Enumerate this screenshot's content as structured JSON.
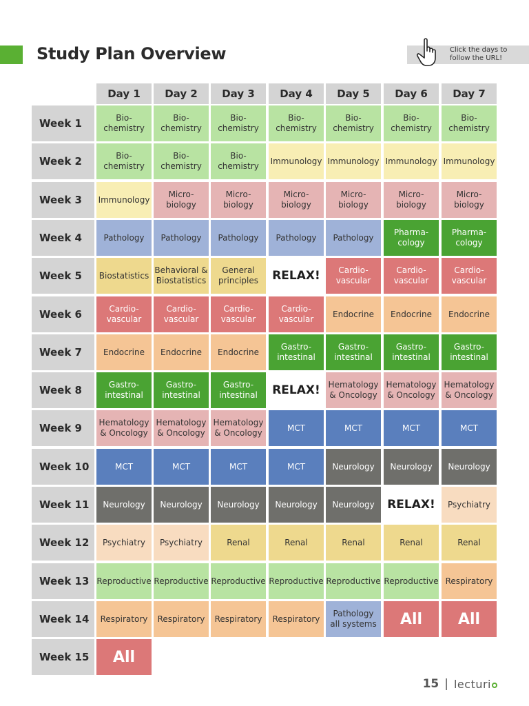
{
  "header": {
    "title": "Study Plan Overview",
    "hint": "Click the days to\nfollow the URL!"
  },
  "days": [
    "Day 1",
    "Day 2",
    "Day 3",
    "Day 4",
    "Day 5",
    "Day 6",
    "Day 7"
  ],
  "colors": {
    "bio": {
      "bg": "#b8e3a2",
      "fg": "#333333"
    },
    "imm": {
      "bg": "#f8eeb4",
      "fg": "#333333"
    },
    "micro": {
      "bg": "#e5b4b4",
      "fg": "#333333"
    },
    "path": {
      "bg": "#9fb2d8",
      "fg": "#333333"
    },
    "pharma": {
      "bg": "#4aa333",
      "fg": "#ffffff"
    },
    "biostat": {
      "bg": "#eed98e",
      "fg": "#333333"
    },
    "cardio": {
      "bg": "#dc7878",
      "fg": "#ffffff"
    },
    "endo": {
      "bg": "#f5c595",
      "fg": "#333333"
    },
    "gastro": {
      "bg": "#4aa333",
      "fg": "#ffffff"
    },
    "heme": {
      "bg": "#e5b4b4",
      "fg": "#333333"
    },
    "mct": {
      "bg": "#5a7fbd",
      "fg": "#ffffff"
    },
    "neuro": {
      "bg": "#6f6f6b",
      "fg": "#ffffff"
    },
    "psych": {
      "bg": "#f8dcc0",
      "fg": "#333333"
    },
    "renal": {
      "bg": "#eed98e",
      "fg": "#333333"
    },
    "repro": {
      "bg": "#b8e3a2",
      "fg": "#333333"
    },
    "resp": {
      "bg": "#f5c595",
      "fg": "#333333"
    },
    "all": {
      "bg": "#dc7878",
      "fg": "#ffffff"
    },
    "relax": {
      "bg": "#ffffff",
      "fg": "#1e1e1e"
    }
  },
  "weeks": [
    {
      "label": "Week 1",
      "cells": [
        {
          "text": "Bio-\nchemistry",
          "cat": "bio"
        },
        {
          "text": "Bio-\nchemistry",
          "cat": "bio"
        },
        {
          "text": "Bio-\nchemistry",
          "cat": "bio"
        },
        {
          "text": "Bio-\nchemistry",
          "cat": "bio"
        },
        {
          "text": "Bio-\nchemistry",
          "cat": "bio"
        },
        {
          "text": "Bio-\nchemistry",
          "cat": "bio"
        },
        {
          "text": "Bio-\nchemistry",
          "cat": "bio"
        }
      ]
    },
    {
      "label": "Week 2",
      "cells": [
        {
          "text": "Bio-\nchemistry",
          "cat": "bio"
        },
        {
          "text": "Bio-\nchemistry",
          "cat": "bio"
        },
        {
          "text": "Bio-\nchemistry",
          "cat": "bio"
        },
        {
          "text": "Immunology",
          "cat": "imm"
        },
        {
          "text": "Immunology",
          "cat": "imm"
        },
        {
          "text": "Immunology",
          "cat": "imm"
        },
        {
          "text": "Immunology",
          "cat": "imm"
        }
      ]
    },
    {
      "label": "Week 3",
      "cells": [
        {
          "text": "Immunology",
          "cat": "imm"
        },
        {
          "text": "Micro-\nbiology",
          "cat": "micro"
        },
        {
          "text": "Micro-\nbiology",
          "cat": "micro"
        },
        {
          "text": "Micro-\nbiology",
          "cat": "micro"
        },
        {
          "text": "Micro-\nbiology",
          "cat": "micro"
        },
        {
          "text": "Micro-\nbiology",
          "cat": "micro"
        },
        {
          "text": "Micro-\nbiology",
          "cat": "micro"
        }
      ]
    },
    {
      "label": "Week 4",
      "cells": [
        {
          "text": "Pathology",
          "cat": "path"
        },
        {
          "text": "Pathology",
          "cat": "path"
        },
        {
          "text": "Pathology",
          "cat": "path"
        },
        {
          "text": "Pathology",
          "cat": "path"
        },
        {
          "text": "Pathology",
          "cat": "path"
        },
        {
          "text": "Pharma-\ncology",
          "cat": "pharma"
        },
        {
          "text": "Pharma-\ncology",
          "cat": "pharma"
        }
      ]
    },
    {
      "label": "Week 5",
      "cells": [
        {
          "text": "Biostatistics",
          "cat": "biostat"
        },
        {
          "text": "Behavioral &\nBiostatistics",
          "cat": "biostat"
        },
        {
          "text": "General\nprinciples",
          "cat": "biostat"
        },
        {
          "text": "RELAX!",
          "cat": "relax"
        },
        {
          "text": "Cardio-\nvascular",
          "cat": "cardio"
        },
        {
          "text": "Cardio-\nvascular",
          "cat": "cardio"
        },
        {
          "text": "Cardio-\nvascular",
          "cat": "cardio"
        }
      ]
    },
    {
      "label": "Week 6",
      "cells": [
        {
          "text": "Cardio-\nvascular",
          "cat": "cardio"
        },
        {
          "text": "Cardio-\nvascular",
          "cat": "cardio"
        },
        {
          "text": "Cardio-\nvascular",
          "cat": "cardio"
        },
        {
          "text": "Cardio-\nvascular",
          "cat": "cardio"
        },
        {
          "text": "Endocrine",
          "cat": "endo"
        },
        {
          "text": "Endocrine",
          "cat": "endo"
        },
        {
          "text": "Endocrine",
          "cat": "endo"
        }
      ]
    },
    {
      "label": "Week 7",
      "cells": [
        {
          "text": "Endocrine",
          "cat": "endo"
        },
        {
          "text": "Endocrine",
          "cat": "endo"
        },
        {
          "text": "Endocrine",
          "cat": "endo"
        },
        {
          "text": "Gastro-\nintestinal",
          "cat": "gastro"
        },
        {
          "text": "Gastro-\nintestinal",
          "cat": "gastro"
        },
        {
          "text": "Gastro-\nintestinal",
          "cat": "gastro"
        },
        {
          "text": "Gastro-\nintestinal",
          "cat": "gastro"
        }
      ]
    },
    {
      "label": "Week 8",
      "cells": [
        {
          "text": "Gastro-\nintestinal",
          "cat": "gastro"
        },
        {
          "text": "Gastro-\nintestinal",
          "cat": "gastro"
        },
        {
          "text": "Gastro-\nintestinal",
          "cat": "gastro"
        },
        {
          "text": "RELAX!",
          "cat": "relax"
        },
        {
          "text": "Hematology\n& Oncology",
          "cat": "heme"
        },
        {
          "text": "Hematology\n& Oncology",
          "cat": "heme"
        },
        {
          "text": "Hematology\n& Oncology",
          "cat": "heme"
        }
      ]
    },
    {
      "label": "Week 9",
      "cells": [
        {
          "text": "Hematology\n& Oncology",
          "cat": "heme"
        },
        {
          "text": "Hematology\n& Oncology",
          "cat": "heme"
        },
        {
          "text": "Hematology\n& Oncology",
          "cat": "heme"
        },
        {
          "text": "MCT",
          "cat": "mct"
        },
        {
          "text": "MCT",
          "cat": "mct"
        },
        {
          "text": "MCT",
          "cat": "mct"
        },
        {
          "text": "MCT",
          "cat": "mct"
        }
      ]
    },
    {
      "label": "Week 10",
      "cells": [
        {
          "text": "MCT",
          "cat": "mct"
        },
        {
          "text": "MCT",
          "cat": "mct"
        },
        {
          "text": "MCT",
          "cat": "mct"
        },
        {
          "text": "MCT",
          "cat": "mct"
        },
        {
          "text": "Neurology",
          "cat": "neuro"
        },
        {
          "text": "Neurology",
          "cat": "neuro"
        },
        {
          "text": "Neurology",
          "cat": "neuro"
        }
      ]
    },
    {
      "label": "Week 11",
      "cells": [
        {
          "text": "Neurology",
          "cat": "neuro"
        },
        {
          "text": "Neurology",
          "cat": "neuro"
        },
        {
          "text": "Neurology",
          "cat": "neuro"
        },
        {
          "text": "Neurology",
          "cat": "neuro"
        },
        {
          "text": "Neurology",
          "cat": "neuro"
        },
        {
          "text": "RELAX!",
          "cat": "relax"
        },
        {
          "text": "Psychiatry",
          "cat": "psych"
        }
      ]
    },
    {
      "label": "Week 12",
      "cells": [
        {
          "text": "Psychiatry",
          "cat": "psych"
        },
        {
          "text": "Psychiatry",
          "cat": "psych"
        },
        {
          "text": "Renal",
          "cat": "renal"
        },
        {
          "text": "Renal",
          "cat": "renal"
        },
        {
          "text": "Renal",
          "cat": "renal"
        },
        {
          "text": "Renal",
          "cat": "renal"
        },
        {
          "text": "Renal",
          "cat": "renal"
        }
      ]
    },
    {
      "label": "Week 13",
      "cells": [
        {
          "text": "Reproductive",
          "cat": "repro"
        },
        {
          "text": "Reproductive",
          "cat": "repro"
        },
        {
          "text": "Reproductive",
          "cat": "repro"
        },
        {
          "text": "Reproductive",
          "cat": "repro"
        },
        {
          "text": "Reproductive",
          "cat": "repro"
        },
        {
          "text": "Reproductive",
          "cat": "repro"
        },
        {
          "text": "Respiratory",
          "cat": "resp"
        }
      ]
    },
    {
      "label": "Week 14",
      "cells": [
        {
          "text": "Respiratory",
          "cat": "resp"
        },
        {
          "text": "Respiratory",
          "cat": "resp"
        },
        {
          "text": "Respiratory",
          "cat": "resp"
        },
        {
          "text": "Respiratory",
          "cat": "resp"
        },
        {
          "text": "Pathology\nall systems",
          "cat": "path"
        },
        {
          "text": "All",
          "cat": "all"
        },
        {
          "text": "All",
          "cat": "all"
        }
      ]
    },
    {
      "label": "Week 15",
      "cells": [
        {
          "text": "All",
          "cat": "all"
        }
      ]
    }
  ],
  "footer": {
    "page_number": "15",
    "separator": "|",
    "brand": "lecturi",
    "brand_icon": "brand-o-icon"
  }
}
